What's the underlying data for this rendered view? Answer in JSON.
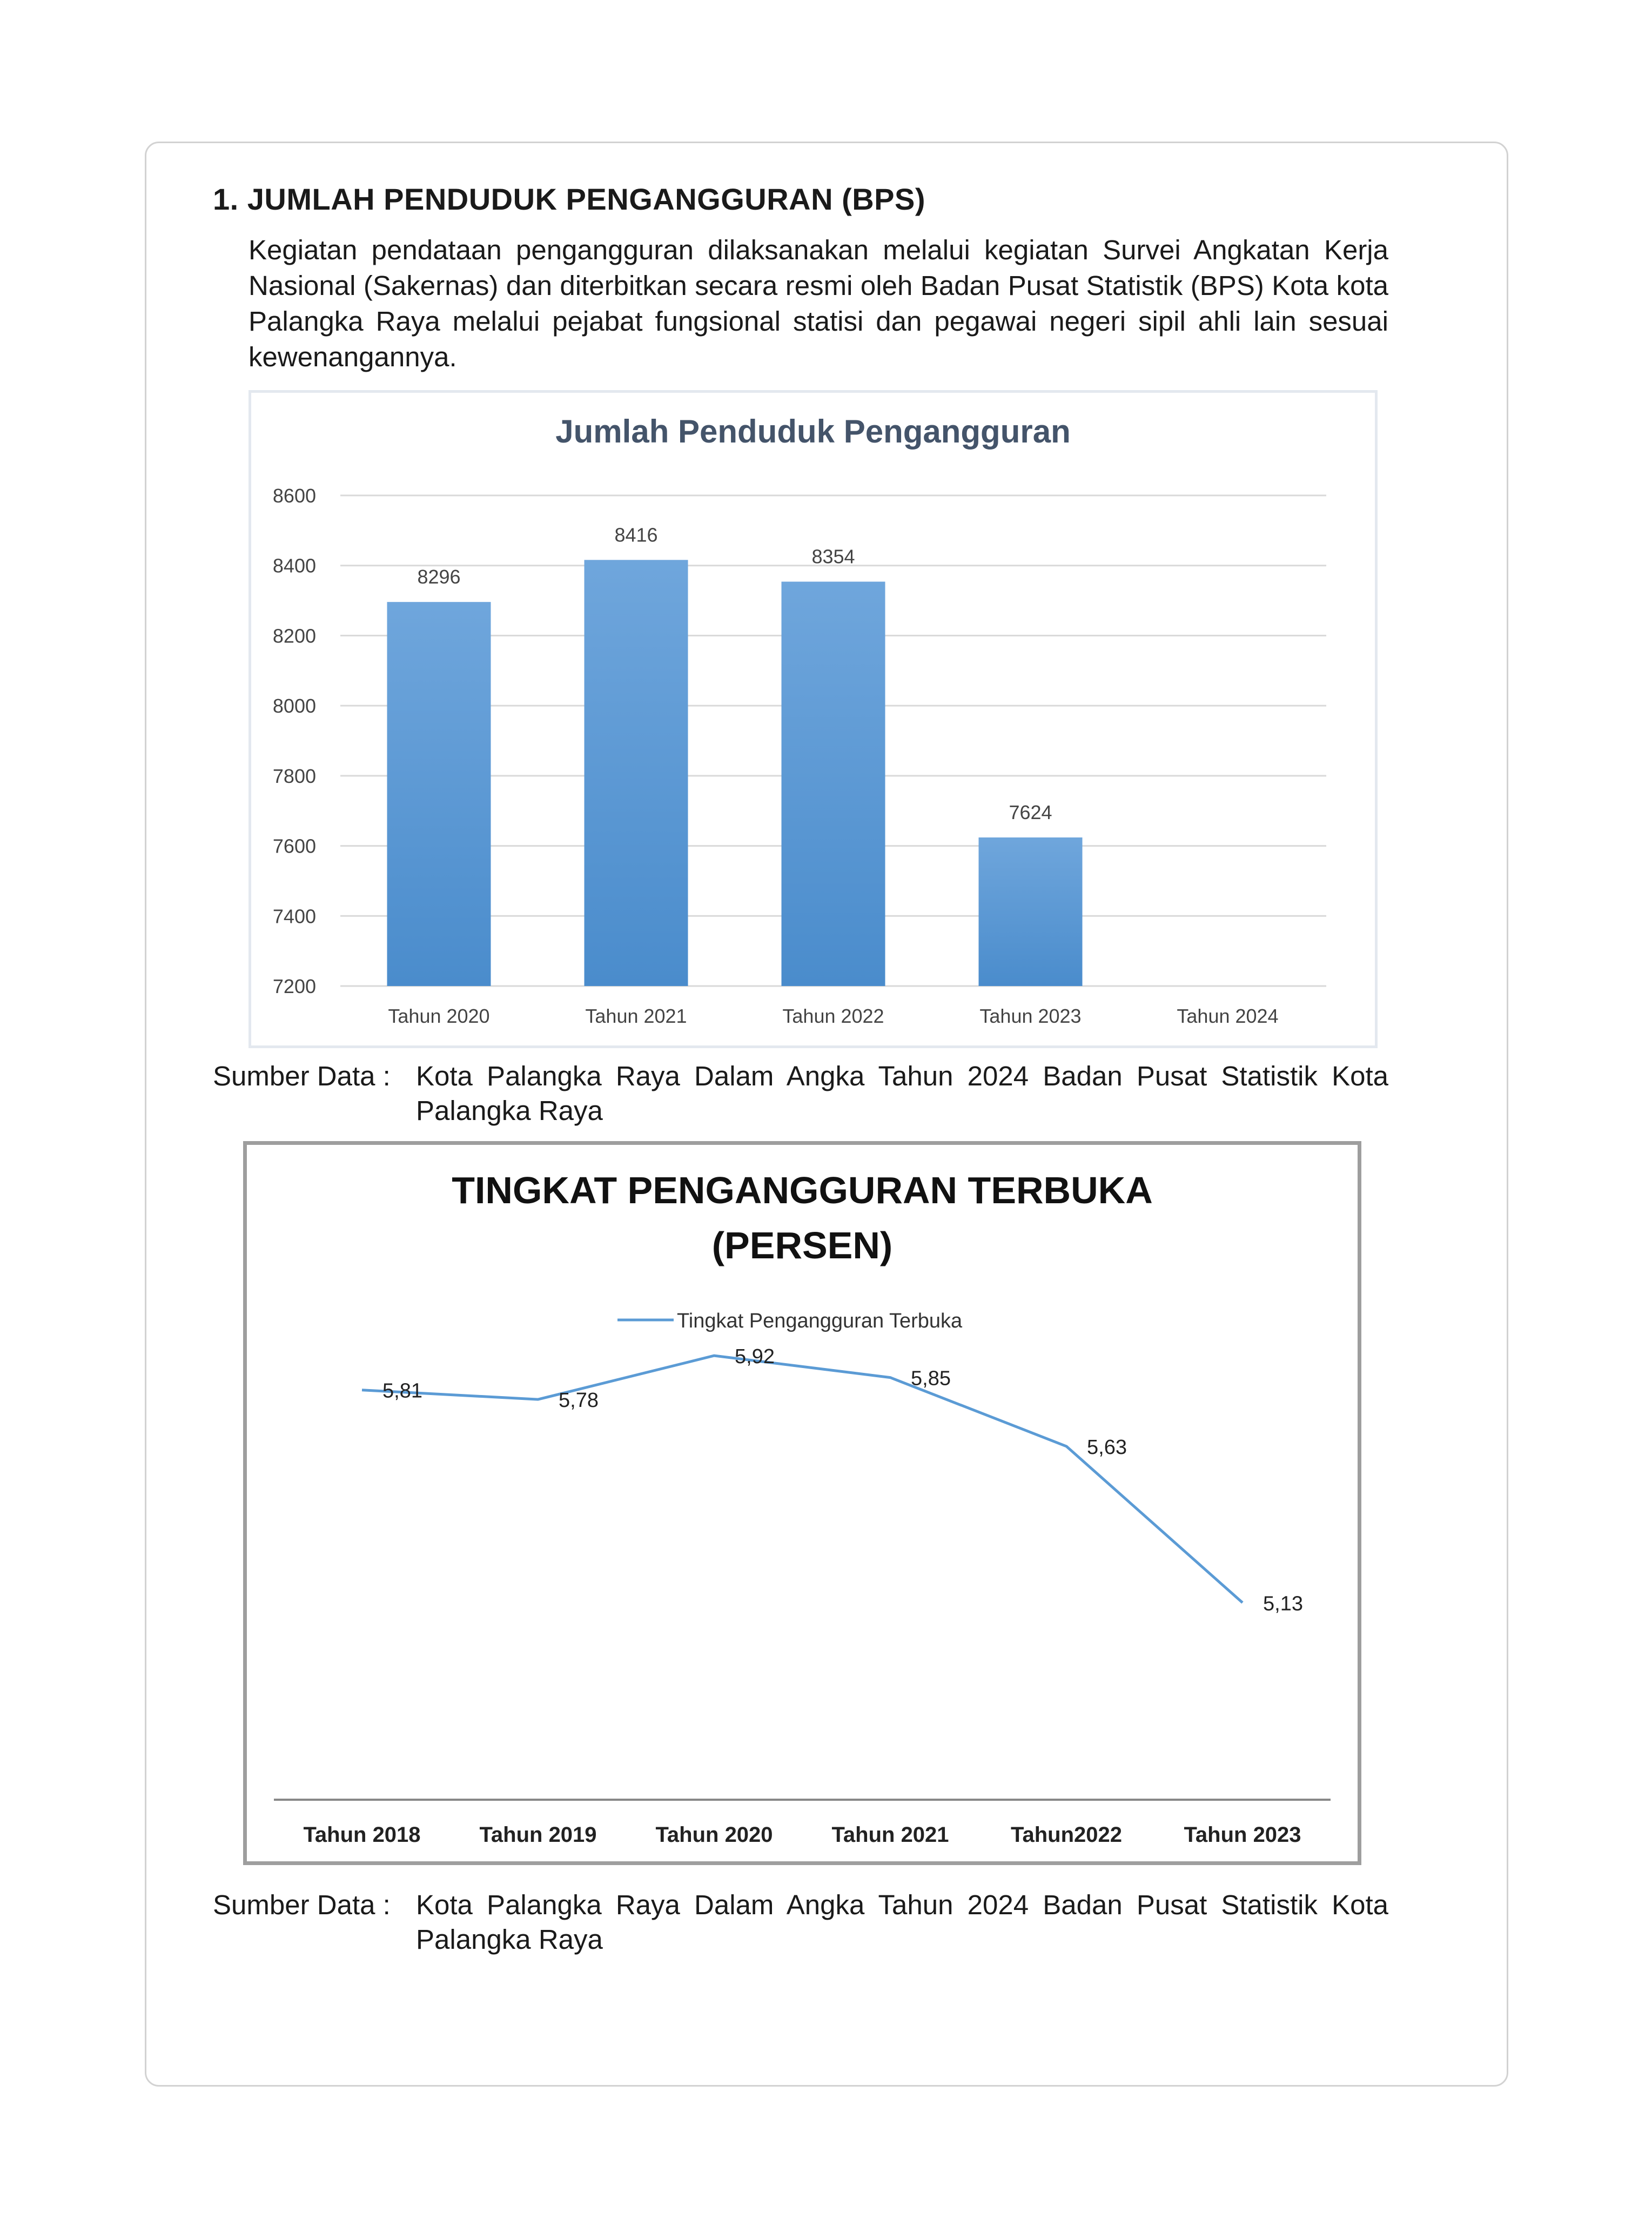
{
  "section": {
    "heading": "1. JUMLAH PENDUDUK PENGANGGURAN (BPS)",
    "paragraph": "Kegiatan pendataan pengangguran dilaksanakan melalui kegiatan Survei Angkatan Kerja Nasional (Sakernas) dan diterbitkan secara resmi oleh Badan Pusat Statistik (BPS) Kota kota Palangka Raya melalui pejabat fungsional statisi dan pegawai negeri sipil ahli lain sesuai kewenangannya."
  },
  "source1": {
    "label": "Sumber Data :",
    "text": "Kota Palangka Raya Dalam Angka Tahun 2024 Badan Pusat Statistik Kota Palangka Raya"
  },
  "source2": {
    "label": "Sumber Data :",
    "text": "Kota Palangka Raya Dalam Angka Tahun 2024 Badan Pusat Statistik Kota Palangka Raya"
  },
  "chart_data": [
    {
      "type": "bar",
      "title": "Jumlah Penduduk Pengangguran",
      "categories": [
        "Tahun 2020",
        "Tahun 2021",
        "Tahun 2022",
        "Tahun 2023",
        "Tahun 2024"
      ],
      "values": [
        8296,
        8416,
        8354,
        7624,
        null
      ],
      "data_labels": [
        "8296",
        "8416",
        "8354",
        "7624",
        ""
      ],
      "yticks": [
        "7200",
        "7400",
        "7600",
        "7800",
        "8000",
        "8200",
        "8400",
        "8600"
      ],
      "ylim": [
        7200,
        8600
      ],
      "grid": true,
      "bar_color": "#5b9bd5",
      "title_color": "#44546a"
    },
    {
      "type": "line",
      "title_line1": "TINGKAT PENGANGGURAN TERBUKA",
      "title_line2": "(PERSEN)",
      "categories": [
        "Tahun 2018",
        "Tahun 2019",
        "Tahun 2020",
        "Tahun 2021",
        "Tahun2022",
        "Tahun 2023"
      ],
      "series": [
        {
          "name": "Tingkat Pengangguran Terbuka",
          "values": [
            5.81,
            5.78,
            5.92,
            5.85,
            5.63,
            5.13
          ],
          "labels": [
            "5,81",
            "5,78",
            "5,92",
            "5,85",
            "5,63",
            "5,13"
          ],
          "color": "#5b9bd5"
        }
      ],
      "legend": "top",
      "ylim": [
        4.5,
        6.2
      ]
    }
  ]
}
